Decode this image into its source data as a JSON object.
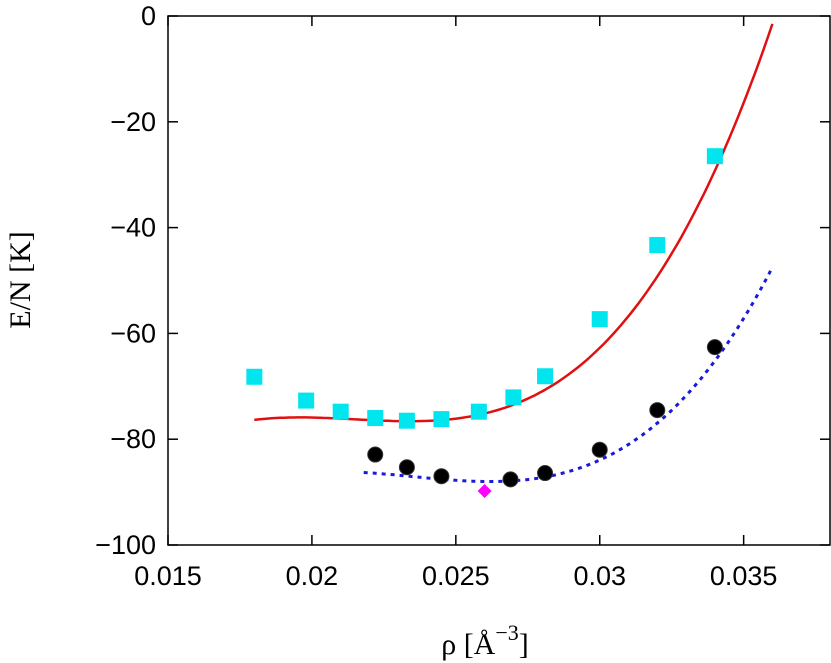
{
  "chart_data": {
    "type": "scatter",
    "xlabel": "ρ [Å",
    "xlabel_sup": "−3",
    "xlabel_end": "]",
    "ylabel": "E/N [K]",
    "xlim": [
      0.015,
      0.038
    ],
    "ylim": [
      -100,
      0
    ],
    "x_ticks": [
      0.015,
      0.02,
      0.025,
      0.03,
      0.035
    ],
    "x_tick_labels": [
      "0.015",
      "0.02",
      "0.025",
      "0.03",
      "0.035"
    ],
    "y_ticks": [
      -100,
      -80,
      -60,
      -40,
      -20,
      0
    ],
    "y_tick_labels": [
      "−100",
      "−80",
      "−60",
      "−40",
      "−20",
      "0"
    ],
    "grid": false,
    "series": [
      {
        "marker": "square",
        "color": "#00e5ee",
        "x": [
          0.018,
          0.0198,
          0.021,
          0.0222,
          0.0233,
          0.0245,
          0.0258,
          0.027,
          0.0281,
          0.03,
          0.032,
          0.034
        ],
        "y": [
          -68.2,
          -72.7,
          -74.8,
          -76.0,
          -76.5,
          -76.2,
          -74.8,
          -72.1,
          -68.1,
          -57.3,
          -43.3,
          -26.5
        ]
      },
      {
        "marker": "circle",
        "color": "#000000",
        "x": [
          0.0222,
          0.0233,
          0.0245,
          0.0269,
          0.0281,
          0.03,
          0.032,
          0.034
        ],
        "y": [
          -82.9,
          -85.3,
          -87.0,
          -87.6,
          -86.4,
          -82.0,
          -74.5,
          -62.6
        ]
      },
      {
        "marker": "diamond",
        "color": "#ff00ff",
        "x": [
          0.026
        ],
        "y": [
          -89.8
        ]
      }
    ],
    "fits": [
      {
        "style": "solid",
        "color": "#e01010",
        "x_range": [
          0.018,
          0.036
        ],
        "min_x": 0.0234,
        "min_y": -76.6,
        "end_y": -1.5
      },
      {
        "style": "dotted",
        "color": "#1a1adc",
        "x_range": [
          0.0218,
          0.036
        ],
        "min_x": 0.0262,
        "min_y": -88.0,
        "end_y": -47.5
      }
    ]
  }
}
